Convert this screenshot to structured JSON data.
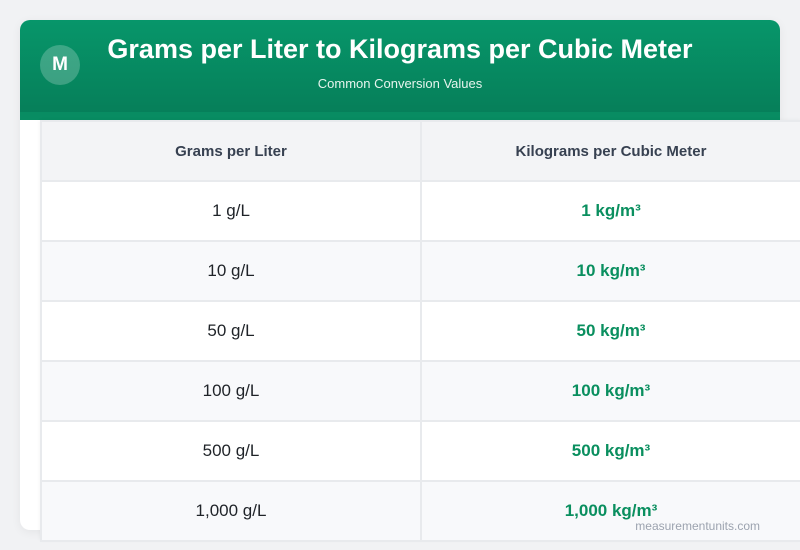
{
  "header": {
    "logo_letter": "M",
    "title": "Grams per Liter to Kilograms per Cubic Meter",
    "subtitle": "Common Conversion Values"
  },
  "colors": {
    "brand": "#07966a",
    "value_text": "#0a8f5f"
  },
  "table": {
    "columns": [
      "Grams per Liter",
      "Kilograms per Cubic Meter"
    ],
    "rows": [
      {
        "input": "1 g/L",
        "output": "1 kg/m³"
      },
      {
        "input": "10 g/L",
        "output": "10 kg/m³"
      },
      {
        "input": "50 g/L",
        "output": "50 kg/m³"
      },
      {
        "input": "100 g/L",
        "output": "100 kg/m³"
      },
      {
        "input": "500 g/L",
        "output": "500 kg/m³"
      },
      {
        "input": "1,000 g/L",
        "output": "1,000 kg/m³"
      }
    ]
  },
  "watermark": "measurementunits.com"
}
